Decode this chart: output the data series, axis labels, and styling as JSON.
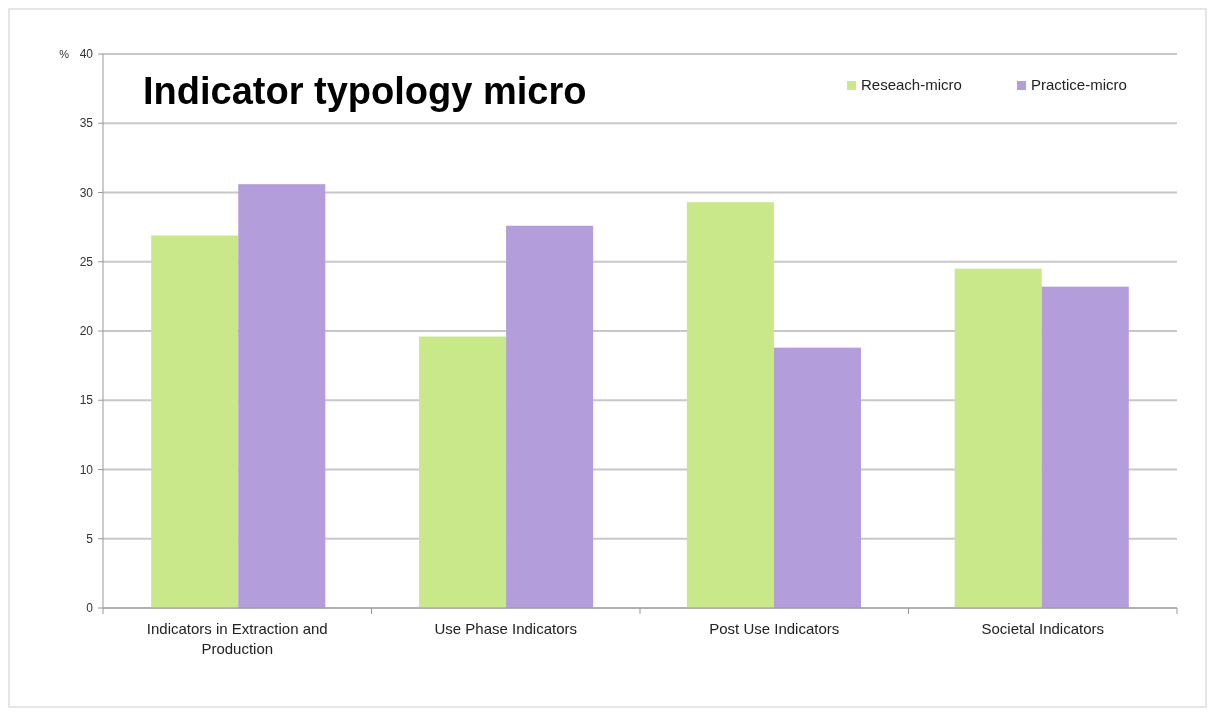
{
  "chart_data": {
    "type": "bar",
    "title": "Indicator typology micro",
    "ylabel": "%",
    "categories": [
      "Indicators in Extraction and Production",
      "Use Phase Indicators",
      "Post Use Indicators",
      "Societal Indicators"
    ],
    "series": [
      {
        "name": "Reseach-micro",
        "color": "#c9e88a",
        "values": [
          26.9,
          19.6,
          29.3,
          24.5
        ]
      },
      {
        "name": "Practice-micro",
        "color": "#b39ddb",
        "values": [
          30.6,
          27.6,
          18.8,
          23.2
        ]
      }
    ],
    "ylim": [
      0,
      40
    ],
    "yticks": [
      0,
      5,
      10,
      15,
      20,
      25,
      30,
      35,
      40
    ],
    "grid": "y",
    "legend": "top right"
  }
}
